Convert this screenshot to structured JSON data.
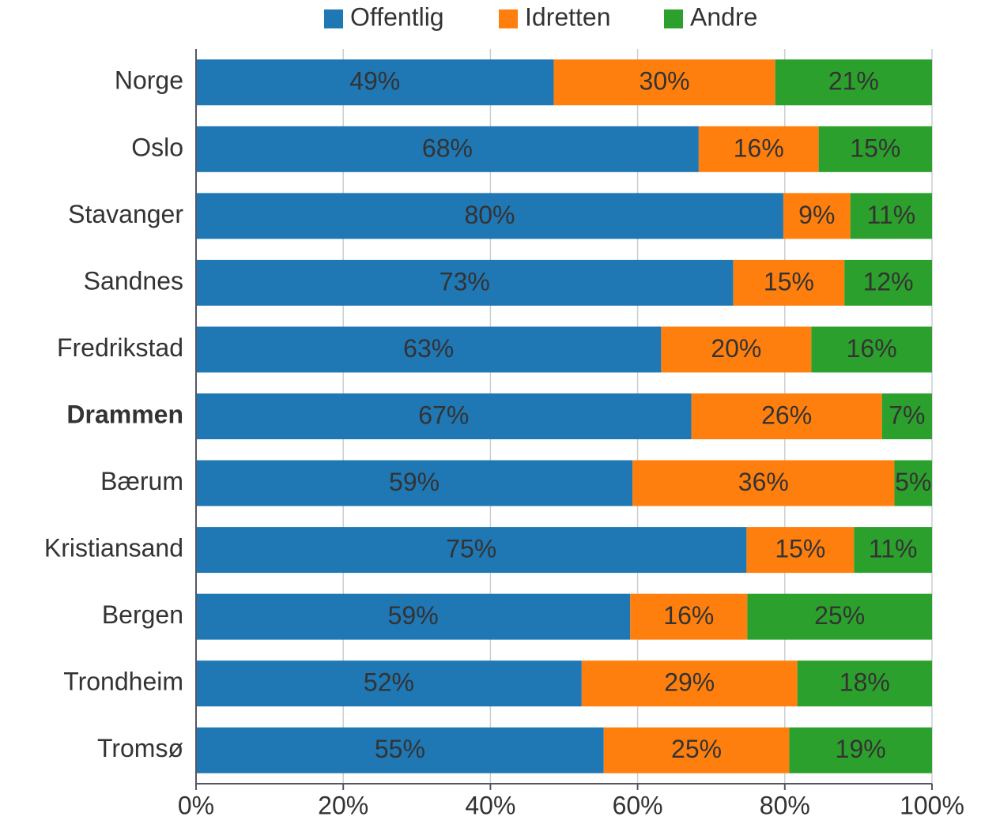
{
  "chart_data": {
    "type": "stacked_barh",
    "categories": [
      "Norge",
      "Oslo",
      "Stavanger",
      "Sandnes",
      "Fredrikstad",
      "Drammen",
      "Bærum",
      "Kristiansand",
      "Bergen",
      "Trondheim",
      "Tromsø"
    ],
    "highlight_category": "Drammen",
    "series": [
      {
        "name": "Offentlig",
        "color": "#1f77b4",
        "values": [
          48.6,
          68.3,
          79.8,
          73.0,
          63.2,
          67.3,
          59.3,
          74.8,
          59.0,
          52.4,
          55.4
        ],
        "value_labels": [
          "49%",
          "68%",
          "80%",
          "73%",
          "63%",
          "67%",
          "59%",
          "75%",
          "59%",
          "52%",
          "55%"
        ]
      },
      {
        "name": "Idretten",
        "color": "#ff7f0e",
        "values": [
          30.1,
          16.3,
          9.1,
          15.1,
          20.4,
          25.9,
          35.6,
          14.6,
          15.9,
          29.3,
          25.2
        ],
        "value_labels": [
          "30%",
          "16%",
          "9%",
          "15%",
          "20%",
          "26%",
          "36%",
          "15%",
          "16%",
          "29%",
          "25%"
        ]
      },
      {
        "name": "Andre",
        "color": "#2ca02c",
        "values": [
          21.3,
          15.4,
          11.1,
          11.9,
          16.4,
          6.8,
          5.1,
          10.6,
          25.1,
          18.3,
          19.4
        ],
        "value_labels": [
          "21%",
          "15%",
          "11%",
          "12%",
          "16%",
          "7%",
          "5%",
          "11%",
          "25%",
          "18%",
          "19%"
        ]
      }
    ],
    "xlim": [
      0,
      100
    ],
    "xticks": [
      {
        "value": 0,
        "label": "0%"
      },
      {
        "value": 20,
        "label": "20%"
      },
      {
        "value": 40,
        "label": "40%"
      },
      {
        "value": 60,
        "label": "60%"
      },
      {
        "value": 80,
        "label": "80%"
      },
      {
        "value": 100,
        "label": "100%"
      }
    ],
    "grid": true,
    "legend": "top"
  }
}
